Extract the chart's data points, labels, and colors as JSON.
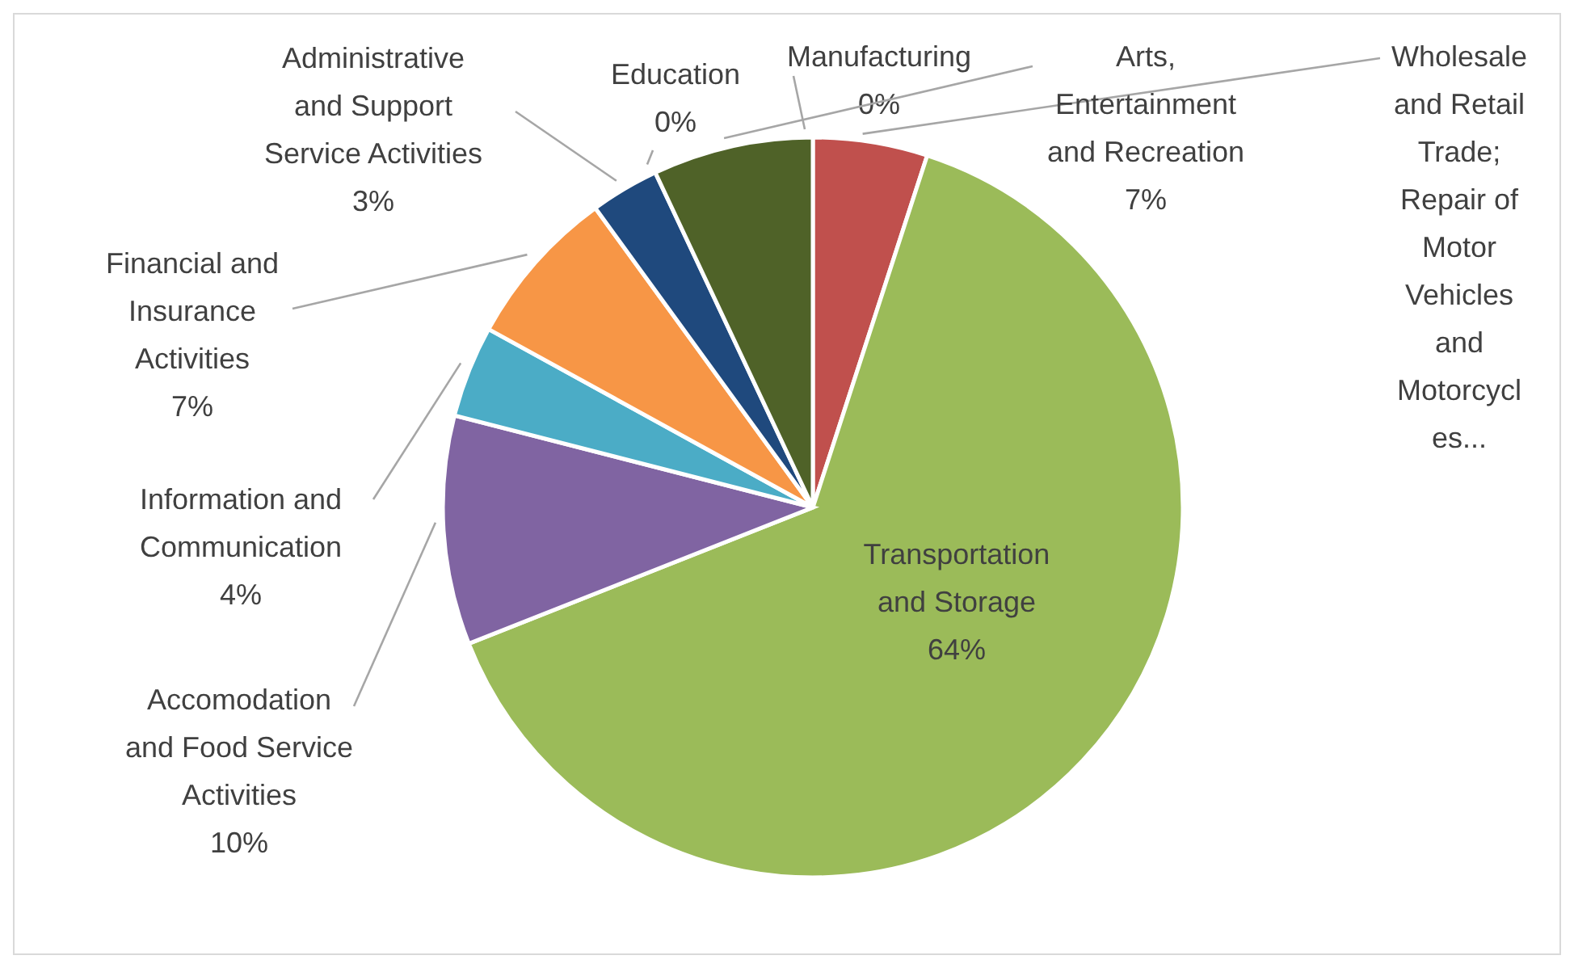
{
  "chart_data": {
    "type": "pie",
    "categories": [
      "Manufacturing",
      "Wholesale and Retail Trade; Repair of Motor Vehicles and Motorcycles...",
      "Transportation and Storage",
      "Accomodation and Food Service Activities",
      "Information and Communication",
      "Financial and Insurance Activities",
      "Administrative and Support Service Activities",
      "Education",
      "Arts, Entertainment and Recreation"
    ],
    "values": [
      0,
      5,
      64,
      10,
      4,
      7,
      3,
      0,
      7
    ],
    "colors": [
      "#4bacc6",
      "#c0504d",
      "#9bbb59",
      "#8064a2",
      "#4bacc6",
      "#f79646",
      "#1f497d",
      "#c0504d",
      "#4f6228"
    ],
    "value_labels": [
      "0%",
      null,
      "64%",
      "10%",
      "4%",
      "7%",
      "3%",
      "0%",
      "7%"
    ],
    "legend": false
  }
}
